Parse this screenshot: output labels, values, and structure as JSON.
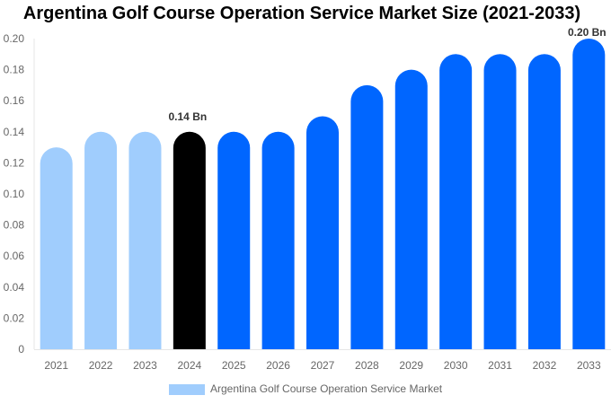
{
  "chart_data": {
    "type": "bar",
    "title": "Argentina Golf Course Operation Service Market Size (2021-2033)",
    "categories": [
      "2021",
      "2022",
      "2023",
      "2024",
      "2025",
      "2026",
      "2027",
      "2028",
      "2029",
      "2030",
      "2031",
      "2032",
      "2033"
    ],
    "series": [
      {
        "name": "Argentina Golf Course Operation Service Market",
        "values": [
          0.13,
          0.14,
          0.14,
          0.14,
          0.14,
          0.14,
          0.15,
          0.17,
          0.18,
          0.19,
          0.19,
          0.19,
          0.2
        ]
      }
    ],
    "bar_colors": [
      "#a0cdfd",
      "#a0cdfd",
      "#a0cdfd",
      "#000000",
      "#0066ff",
      "#0066ff",
      "#0066ff",
      "#0066ff",
      "#0066ff",
      "#0066ff",
      "#0066ff",
      "#0066ff",
      "#0066ff"
    ],
    "data_labels": [
      {
        "index": 3,
        "text": "0.14 Bn"
      },
      {
        "index": 12,
        "text": "0.20 Bn"
      }
    ],
    "yticks": [
      "0",
      "0.02",
      "0.04",
      "0.06",
      "0.08",
      "0.10",
      "0.12",
      "0.14",
      "0.16",
      "0.18",
      "0.20"
    ],
    "ylim": [
      0,
      0.2
    ],
    "xlabel": "",
    "ylabel": "",
    "grid": false,
    "legend_position": "bottom",
    "legend_color": "#a0cdfd"
  }
}
